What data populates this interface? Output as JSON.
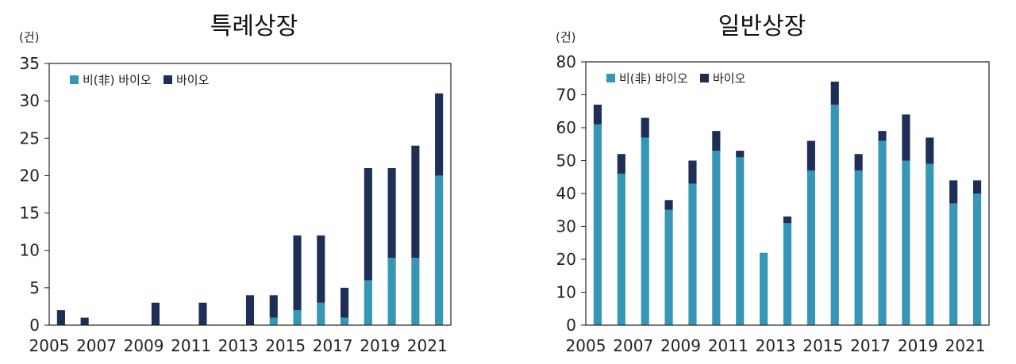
{
  "colors": {
    "non_bio": "#3596b5",
    "bio": "#1f2e57",
    "axis": "#222222"
  },
  "chart_data": [
    {
      "type": "bar",
      "stacked": true,
      "title": "특례상장",
      "unit_label": "(건)",
      "xlabel": "",
      "ylabel": "(건)",
      "ylim": [
        0,
        35
      ],
      "yticks": [
        0,
        5,
        10,
        15,
        20,
        25,
        30,
        35
      ],
      "categories": [
        "2005",
        "2006",
        "2007",
        "2008",
        "2009",
        "2010",
        "2011",
        "2012",
        "2013",
        "2014",
        "2015",
        "2016",
        "2017",
        "2018",
        "2019",
        "2020",
        "2021"
      ],
      "xtick_labels": [
        "2005",
        "2007",
        "2009",
        "2011",
        "2013",
        "2015",
        "2017",
        "2019",
        "2021"
      ],
      "legend": [
        "비(非) 바이오",
        "바이오"
      ],
      "legend_position": "top-left",
      "series": [
        {
          "name": "비(非) 바이오",
          "values": [
            0,
            0,
            0,
            0,
            0,
            0,
            0,
            0,
            0,
            1,
            2,
            3,
            1,
            6,
            9,
            9,
            20
          ]
        },
        {
          "name": "바이오",
          "values": [
            2,
            1,
            0,
            0,
            3,
            0,
            3,
            0,
            4,
            3,
            10,
            9,
            4,
            15,
            12,
            15,
            11
          ]
        }
      ]
    },
    {
      "type": "bar",
      "stacked": true,
      "title": "일반상장",
      "unit_label": "(건)",
      "xlabel": "",
      "ylabel": "(건)",
      "ylim": [
        0,
        80
      ],
      "yticks": [
        0,
        10,
        20,
        30,
        40,
        50,
        60,
        70,
        80
      ],
      "categories": [
        "2005",
        "2006",
        "2007",
        "2008",
        "2009",
        "2010",
        "2011",
        "2012",
        "2013",
        "2014",
        "2015",
        "2016",
        "2017",
        "2018",
        "2019",
        "2020",
        "2021"
      ],
      "xtick_labels": [
        "2005",
        "2007",
        "2009",
        "2011",
        "2013",
        "2015",
        "2017",
        "2019",
        "2021"
      ],
      "legend": [
        "비(非) 바이오",
        "바이오"
      ],
      "legend_position": "top-left",
      "series": [
        {
          "name": "비(非) 바이오",
          "values": [
            61,
            46,
            57,
            35,
            43,
            53,
            51,
            22,
            31,
            47,
            67,
            47,
            56,
            50,
            49,
            37,
            40
          ]
        },
        {
          "name": "바이오",
          "values": [
            6,
            6,
            6,
            3,
            7,
            6,
            2,
            0,
            2,
            9,
            7,
            5,
            3,
            14,
            8,
            7,
            4
          ]
        }
      ]
    }
  ]
}
